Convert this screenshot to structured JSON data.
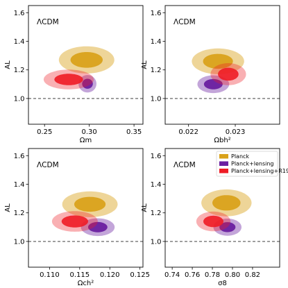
{
  "colors": {
    "planck": "#d9a21b",
    "planck_lensing": "#6a1fa0",
    "planck_lensing_r19": "#ee1c25",
    "reference_line": "#555555"
  },
  "legend": {
    "entries": [
      "Planck",
      "Planck+lensing",
      "Planck+lensing+R19"
    ]
  },
  "chart_data": [
    {
      "type": "contour",
      "panel": "top-left",
      "model_label": "ΛCDM",
      "xlabel": "Ωm",
      "ylabel": "AL",
      "xlim": [
        0.232,
        0.36
      ],
      "ylim": [
        0.82,
        1.65
      ],
      "xticks": [
        0.25,
        0.3,
        0.35
      ],
      "xtick_labels": [
        "0.25",
        "0.30",
        "0.35"
      ],
      "yticks": [
        1.0,
        1.2,
        1.4,
        1.6
      ],
      "ytick_labels": [
        "1.0",
        "1.2",
        "1.4",
        "1.6"
      ],
      "reference_line_y": 1.0,
      "series": [
        {
          "name": "Planck",
          "center": [
            0.297,
            1.27
          ],
          "sigma1": [
            0.018,
            0.055
          ],
          "sigma2": [
            0.031,
            0.095
          ],
          "angle_deg": -44,
          "inner_opacity": 0.95,
          "outer_opacity": 0.45
        },
        {
          "name": "Planck+lensing",
          "center": [
            0.298,
            1.103
          ],
          "sigma1": [
            0.006,
            0.035
          ],
          "sigma2": [
            0.01,
            0.061
          ],
          "angle_deg": -64,
          "inner_opacity": 0.95,
          "outer_opacity": 0.4
        },
        {
          "name": "Planck+lensing+R19",
          "center": [
            0.277,
            1.133
          ],
          "sigma1": [
            0.016,
            0.04
          ],
          "sigma2": [
            0.028,
            0.069
          ],
          "angle_deg": -28,
          "inner_opacity": 0.9,
          "outer_opacity": 0.35
        }
      ]
    },
    {
      "type": "contour",
      "panel": "top-right",
      "model_label": "ΛCDM",
      "xlabel": "Ωbh²",
      "ylabel": "AL",
      "xlim": [
        0.0215,
        0.02395
      ],
      "ylim": [
        0.82,
        1.65
      ],
      "xticks": [
        0.022,
        0.023
      ],
      "xtick_labels": [
        "0.022",
        "0.023"
      ],
      "yticks": [
        1.0,
        1.2,
        1.4,
        1.6
      ],
      "ytick_labels": [
        "1.0",
        "1.2",
        "1.4",
        "1.6"
      ],
      "reference_line_y": 1.0,
      "series": [
        {
          "name": "Planck",
          "center": [
            0.02263,
            1.26
          ],
          "sigma1": [
            0.00032,
            0.052
          ],
          "sigma2": [
            0.00056,
            0.09
          ],
          "angle_deg": -58,
          "inner_opacity": 0.95,
          "outer_opacity": 0.45
        },
        {
          "name": "Planck+lensing",
          "center": [
            0.02253,
            1.1
          ],
          "sigma1": [
            0.0002,
            0.036
          ],
          "sigma2": [
            0.00034,
            0.062
          ],
          "angle_deg": -38,
          "inner_opacity": 0.95,
          "outer_opacity": 0.4
        },
        {
          "name": "Planck+lensing+R19",
          "center": [
            0.02285,
            1.17
          ],
          "sigma1": [
            0.00022,
            0.045
          ],
          "sigma2": [
            0.00038,
            0.077
          ],
          "angle_deg": -48,
          "inner_opacity": 0.9,
          "outer_opacity": 0.35
        }
      ]
    },
    {
      "type": "contour",
      "panel": "bottom-left",
      "model_label": "ΛCDM",
      "xlabel": "Ωch²",
      "ylabel": "AL",
      "xlim": [
        0.1065,
        0.1255
      ],
      "ylim": [
        0.82,
        1.65
      ],
      "xticks": [
        0.11,
        0.115,
        0.12,
        0.125
      ],
      "xtick_labels": [
        "0.110",
        "0.115",
        "0.120",
        "0.125"
      ],
      "yticks": [
        1.0,
        1.2,
        1.4,
        1.6
      ],
      "ytick_labels": [
        "1.0",
        "1.2",
        "1.4",
        "1.6"
      ],
      "reference_line_y": 1.0,
      "series": [
        {
          "name": "Planck",
          "center": [
            0.1167,
            1.26
          ],
          "sigma1": [
            0.0026,
            0.052
          ],
          "sigma2": [
            0.0046,
            0.09
          ],
          "angle_deg": -43,
          "inner_opacity": 0.95,
          "outer_opacity": 0.45
        },
        {
          "name": "Planck+lensing",
          "center": [
            0.118,
            1.1
          ],
          "sigma1": [
            0.0016,
            0.036
          ],
          "sigma2": [
            0.0028,
            0.062
          ],
          "angle_deg": -35,
          "inner_opacity": 0.95,
          "outer_opacity": 0.4
        },
        {
          "name": "Planck+lensing+R19",
          "center": [
            0.1142,
            1.14
          ],
          "sigma1": [
            0.0022,
            0.042
          ],
          "sigma2": [
            0.0038,
            0.072
          ],
          "angle_deg": -30,
          "inner_opacity": 0.9,
          "outer_opacity": 0.35
        }
      ]
    },
    {
      "type": "contour",
      "panel": "bottom-right",
      "model_label": "ΛCDM",
      "xlabel": "σ8",
      "ylabel": "AL",
      "xlim": [
        0.733,
        0.847
      ],
      "ylim": [
        0.82,
        1.65
      ],
      "xticks": [
        0.74,
        0.76,
        0.78,
        0.8,
        0.82
      ],
      "xtick_labels": [
        "0.74",
        "0.76",
        "0.78",
        "0.80",
        "0.82"
      ],
      "yticks": [
        1.0,
        1.2,
        1.4,
        1.6
      ],
      "ytick_labels": [
        "1.0",
        "1.2",
        "1.4",
        "1.6"
      ],
      "reference_line_y": 1.0,
      "legend_position": "upper-right",
      "series": [
        {
          "name": "Planck",
          "center": [
            0.794,
            1.27
          ],
          "sigma1": [
            0.014,
            0.054
          ],
          "sigma2": [
            0.025,
            0.094
          ],
          "angle_deg": -46,
          "inner_opacity": 0.95,
          "outer_opacity": 0.45
        },
        {
          "name": "Planck+lensing",
          "center": [
            0.795,
            1.1
          ],
          "sigma1": [
            0.008,
            0.035
          ],
          "sigma2": [
            0.014,
            0.06
          ],
          "angle_deg": -40,
          "inner_opacity": 0.95,
          "outer_opacity": 0.4
        },
        {
          "name": "Planck+lensing+R19",
          "center": [
            0.781,
            1.14
          ],
          "sigma1": [
            0.01,
            0.04
          ],
          "sigma2": [
            0.017,
            0.069
          ],
          "angle_deg": -30,
          "inner_opacity": 0.9,
          "outer_opacity": 0.35
        }
      ]
    }
  ]
}
